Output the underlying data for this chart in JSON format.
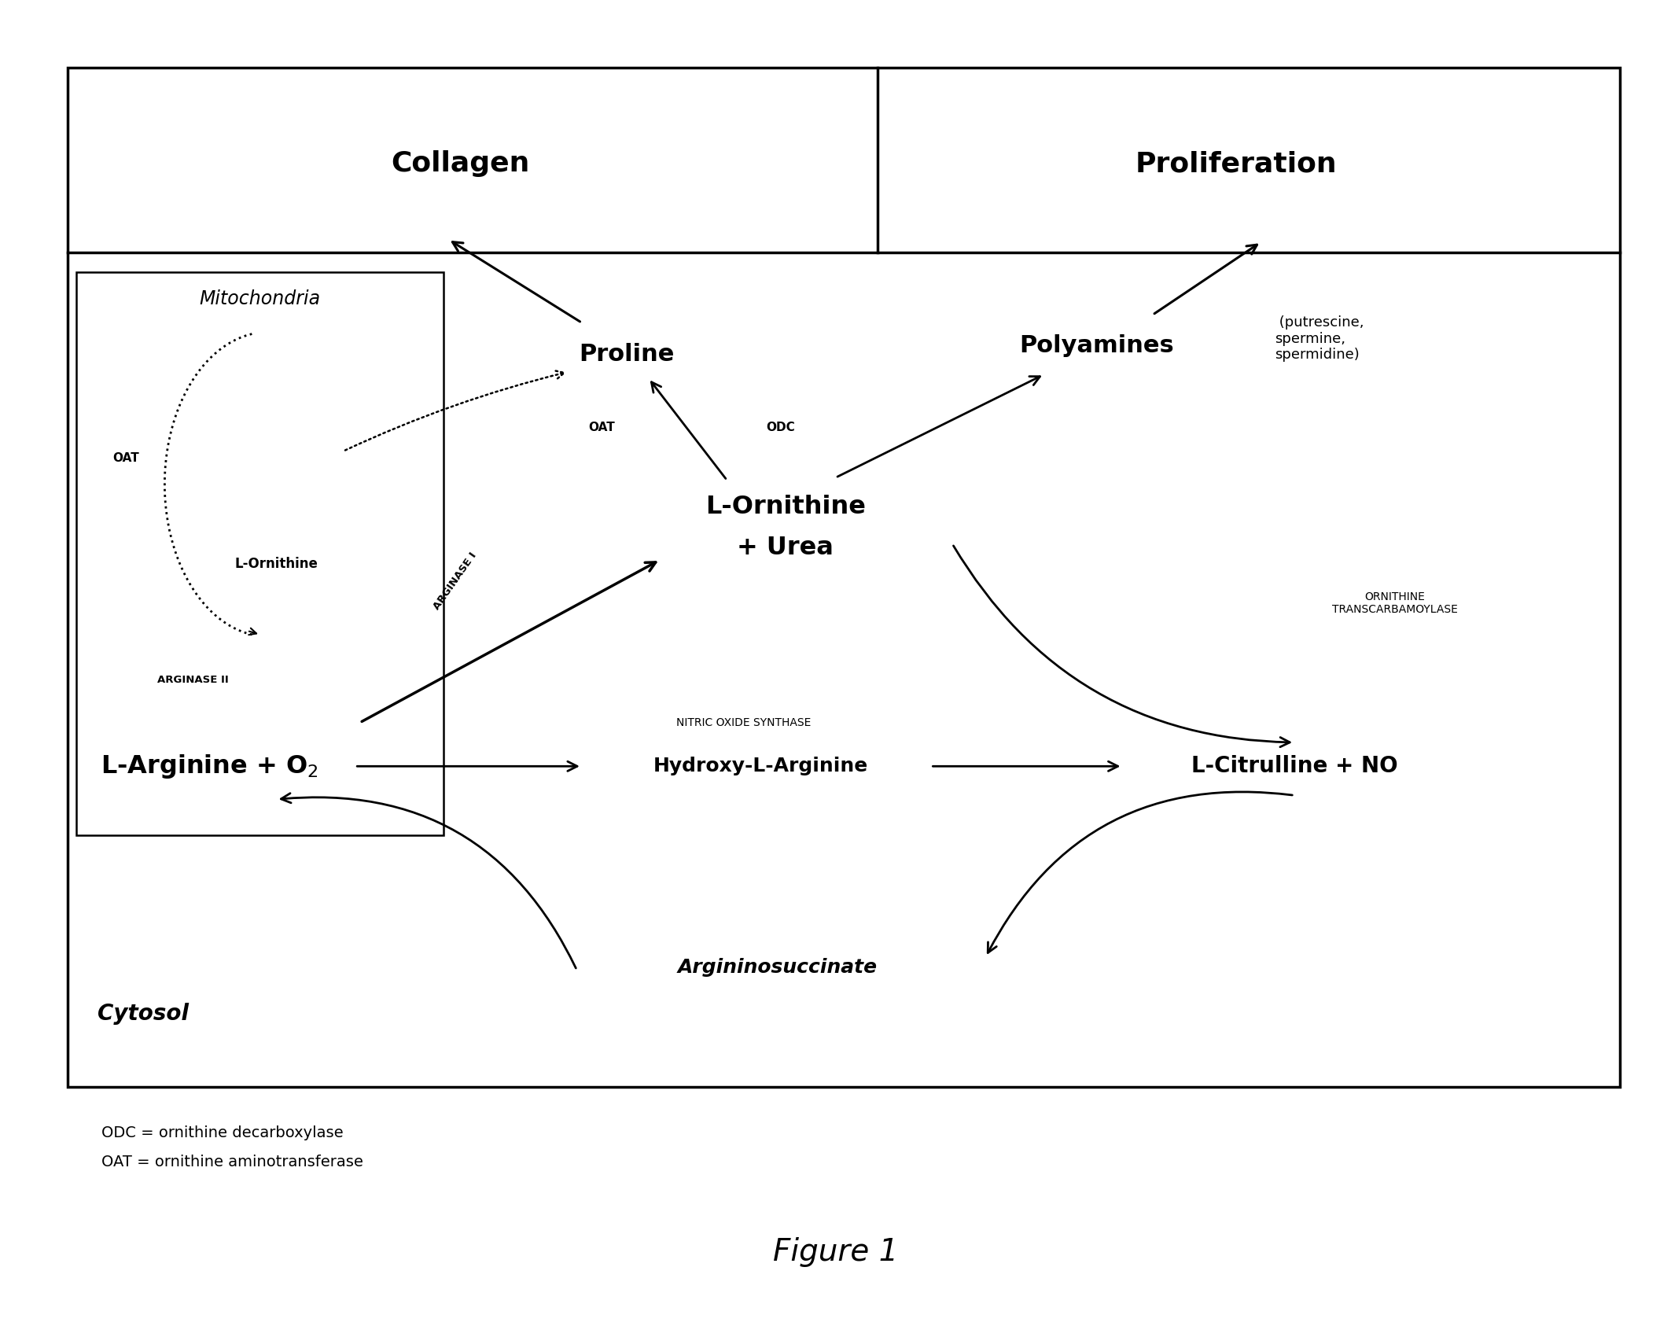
{
  "bg_color": "#ffffff",
  "fig_width": 21.25,
  "fig_height": 16.86,
  "title": "Figure 1",
  "legend_odc": "ODC = ornithine decarboxylase",
  "legend_oat": "OAT = ornithine aminotransferase",
  "font_sizes": {
    "header_bold": 26,
    "molecule_bold": 22,
    "small_molecule": 18,
    "enzyme_label": 11,
    "mito_italic": 17,
    "cytosol_italic": 20,
    "legend": 14,
    "title_fig": 28,
    "polyamines_annot": 13
  }
}
